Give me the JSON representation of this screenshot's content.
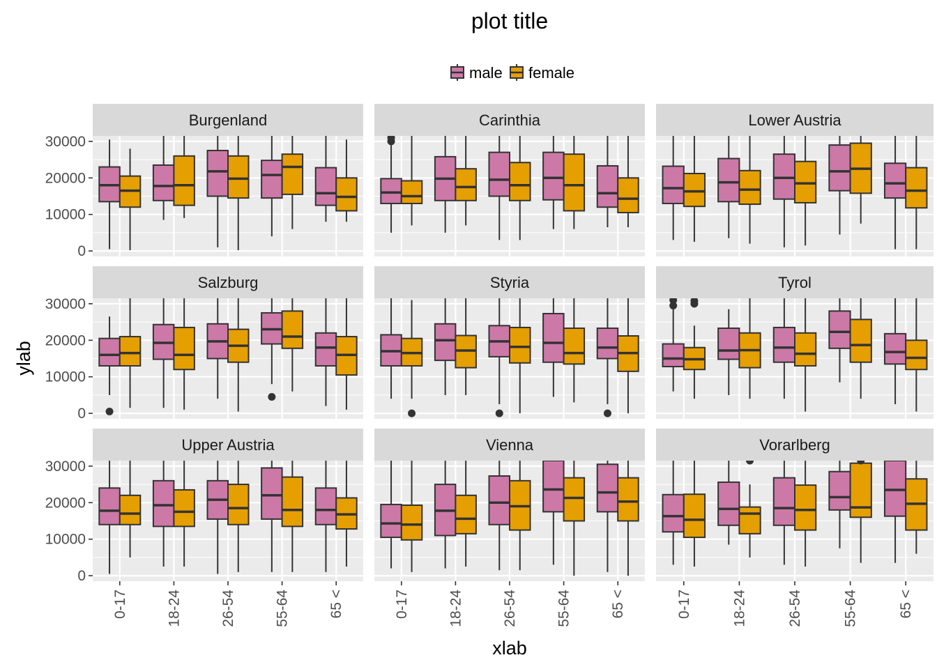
{
  "chart_data": {
    "type": "boxplot",
    "title": "plot title",
    "xlabel": "xlab",
    "ylabel": "ylab",
    "ylim": [
      -1500,
      31500
    ],
    "yticks": [
      0,
      10000,
      20000,
      30000
    ],
    "ytick_labels": [
      "0",
      "10000",
      "20000",
      "30000"
    ],
    "categories": [
      "0-17",
      "18-24",
      "26-54",
      "55-64",
      "65 <"
    ],
    "legend": {
      "position": "top",
      "entries": [
        "male",
        "female"
      ]
    },
    "series_colors": {
      "male": "#CC79A7",
      "female": "#E69F00"
    },
    "panels": [
      {
        "name": "Burgenland",
        "boxes": {
          "male": [
            [
              500,
              13500,
              18000,
              23000,
              30500
            ],
            [
              8500,
              13800,
              17800,
              23500,
              31500
            ],
            [
              1000,
              15000,
              21800,
              27500,
              31500
            ],
            [
              4000,
              14500,
              20800,
              24800,
              31500
            ],
            [
              8000,
              12500,
              15800,
              22800,
              31500
            ]
          ],
          "female": [
            [
              200,
              12000,
              16500,
              20500,
              28000
            ],
            [
              9000,
              12500,
              18000,
              26000,
              31500
            ],
            [
              200,
              14500,
              19800,
              26000,
              31500
            ],
            [
              6000,
              15500,
              23000,
              26500,
              31500
            ],
            [
              8000,
              11000,
              14800,
              20000,
              30500
            ]
          ]
        },
        "outliers": {
          "male": [
            [],
            [],
            [],
            [],
            []
          ],
          "female": [
            [],
            [],
            [],
            [],
            []
          ]
        }
      },
      {
        "name": "Carinthia",
        "boxes": {
          "male": [
            [
              5000,
              13000,
              16000,
              19800,
              30000
            ],
            [
              5000,
              13800,
              19800,
              25800,
              31500
            ],
            [
              3000,
              15000,
              19500,
              27000,
              31500
            ],
            [
              6000,
              14000,
              20000,
              27000,
              31500
            ],
            [
              6500,
              12000,
              15800,
              23300,
              31500
            ]
          ],
          "female": [
            [
              7000,
              13000,
              15000,
              19200,
              31500
            ],
            [
              7000,
              13800,
              17500,
              22500,
              31500
            ],
            [
              3000,
              13800,
              18000,
              24200,
              31500
            ],
            [
              6000,
              11000,
              18000,
              26500,
              31500
            ],
            [
              6500,
              10500,
              14300,
              20000,
              31500
            ]
          ]
        },
        "outliers": {
          "male": [
            [
              30000,
              31000
            ],
            [],
            [],
            [],
            []
          ],
          "female": [
            [],
            [],
            [],
            [],
            []
          ]
        }
      },
      {
        "name": "Lower Austria",
        "boxes": {
          "male": [
            [
              3000,
              13000,
              17200,
              23200,
              31500
            ],
            [
              3500,
              13500,
              18800,
              25300,
              31500
            ],
            [
              1000,
              14200,
              20000,
              26500,
              31500
            ],
            [
              4500,
              16500,
              21800,
              29000,
              31500
            ],
            [
              500,
              14500,
              18500,
              24000,
              31500
            ]
          ],
          "female": [
            [
              2500,
              12200,
              16300,
              21200,
              31500
            ],
            [
              2000,
              12800,
              16800,
              22000,
              31500
            ],
            [
              1500,
              13200,
              18500,
              24500,
              31500
            ],
            [
              7500,
              15800,
              22500,
              29500,
              31500
            ],
            [
              500,
              11800,
              16500,
              22800,
              31500
            ]
          ]
        },
        "outliers": {
          "male": [
            [],
            [],
            [],
            [],
            []
          ],
          "female": [
            [],
            [],
            [],
            [],
            []
          ]
        }
      },
      {
        "name": "Salzburg",
        "boxes": {
          "male": [
            [
              5000,
              13000,
              16000,
              20500,
              26500
            ],
            [
              1500,
              14800,
              19300,
              24300,
              31500
            ],
            [
              4000,
              15000,
              19700,
              24500,
              31500
            ],
            [
              8000,
              19000,
              23000,
              27500,
              31500
            ],
            [
              2000,
              13000,
              18000,
              22000,
              31500
            ]
          ],
          "female": [
            [
              1500,
              13000,
              16500,
              21000,
              31500
            ],
            [
              1000,
              12000,
              16000,
              23500,
              31500
            ],
            [
              500,
              14000,
              18500,
              23000,
              31500
            ],
            [
              6000,
              17800,
              21000,
              28000,
              31500
            ],
            [
              1000,
              10500,
              16000,
              21000,
              31500
            ]
          ]
        },
        "outliers": {
          "male": [
            [
              500
            ],
            [],
            [],
            [
              4500
            ],
            []
          ],
          "female": [
            [],
            [],
            [],
            [],
            []
          ]
        }
      },
      {
        "name": "Styria",
        "boxes": {
          "male": [
            [
              4000,
              13000,
              17000,
              21500,
              31500
            ],
            [
              5000,
              14500,
              20000,
              24500,
              31500
            ],
            [
              2500,
              15500,
              19700,
              24000,
              31500
            ],
            [
              4500,
              14000,
              19300,
              27300,
              31500
            ],
            [
              2500,
              15000,
              18000,
              23300,
              31500
            ]
          ],
          "female": [
            [
              4000,
              13000,
              16500,
              20500,
              31000
            ],
            [
              5000,
              12500,
              17200,
              21300,
              31500
            ],
            [
              0,
              13800,
              18200,
              23500,
              31500
            ],
            [
              3000,
              13500,
              16500,
              23300,
              31500
            ],
            [
              0,
              11500,
              16500,
              21200,
              31500
            ]
          ]
        },
        "outliers": {
          "male": [
            [],
            [],
            [
              0
            ],
            [],
            [
              0
            ]
          ],
          "female": [
            [
              0
            ],
            [],
            [],
            [],
            []
          ]
        }
      },
      {
        "name": "Tyrol",
        "boxes": {
          "male": [
            [
              6000,
              12800,
              15000,
              19000,
              28500
            ],
            [
              5000,
              14800,
              17200,
              23300,
              28500
            ],
            [
              4000,
              14000,
              18000,
              23500,
              31500
            ],
            [
              8500,
              17800,
              22300,
              28000,
              31500
            ],
            [
              2500,
              13500,
              16800,
              21800,
              31500
            ]
          ],
          "female": [
            [
              4000,
              12000,
              14800,
              18000,
              24000
            ],
            [
              4000,
              12500,
              17300,
              22000,
              31500
            ],
            [
              500,
              13000,
              16300,
              22000,
              31500
            ],
            [
              4000,
              14000,
              18700,
              25700,
              31500
            ],
            [
              500,
              12000,
              15200,
              20000,
              31500
            ]
          ]
        },
        "outliers": {
          "male": [
            [
              29500,
              31000
            ],
            [],
            [],
            [],
            []
          ],
          "female": [
            [
              30000,
              30800
            ],
            [],
            [],
            [],
            []
          ]
        }
      },
      {
        "name": "Upper Austria",
        "boxes": {
          "male": [
            [
              500,
              14000,
              17800,
              24000,
              31500
            ],
            [
              2500,
              13500,
              19300,
              26000,
              31500
            ],
            [
              500,
              15500,
              20800,
              26000,
              31500
            ],
            [
              1000,
              15500,
              22000,
              29500,
              31500
            ],
            [
              1000,
              14000,
              18000,
              24000,
              31500
            ]
          ],
          "female": [
            [
              5000,
              14000,
              17000,
              22000,
              31500
            ],
            [
              2500,
              13500,
              17500,
              23500,
              31500
            ],
            [
              1000,
              14000,
              18500,
              25000,
              31500
            ],
            [
              1000,
              13500,
              18000,
              27000,
              31500
            ],
            [
              2500,
              12800,
              16800,
              21300,
              31500
            ]
          ]
        },
        "outliers": {
          "male": [
            [],
            [],
            [],
            [],
            []
          ],
          "female": [
            [],
            [],
            [],
            [],
            []
          ]
        }
      },
      {
        "name": "Vienna",
        "boxes": {
          "male": [
            [
              2000,
              10500,
              14300,
              19500,
              31500
            ],
            [
              2000,
              11000,
              17800,
              25000,
              31500
            ],
            [
              1500,
              14000,
              20000,
              27300,
              31500
            ],
            [
              3000,
              17500,
              23600,
              31500,
              31500
            ],
            [
              1000,
              17500,
              22800,
              30500,
              31500
            ]
          ],
          "female": [
            [
              1000,
              9800,
              14000,
              19300,
              31500
            ],
            [
              2500,
              11500,
              15600,
              22000,
              31500
            ],
            [
              1500,
              12500,
              19000,
              26000,
              31500
            ],
            [
              0,
              15000,
              21300,
              26800,
              31500
            ],
            [
              0,
              15000,
              20300,
              26800,
              31500
            ]
          ]
        },
        "outliers": {
          "male": [
            [],
            [],
            [],
            [],
            []
          ],
          "female": [
            [],
            [],
            [],
            [],
            []
          ]
        }
      },
      {
        "name": "Vorarlberg",
        "boxes": {
          "male": [
            [
              3000,
              12000,
              16300,
              22200,
              31500
            ],
            [
              8500,
              13800,
              18300,
              25600,
              31500
            ],
            [
              3000,
              13800,
              18500,
              26800,
              31500
            ],
            [
              7500,
              18000,
              21500,
              28500,
              31500
            ],
            [
              3500,
              16300,
              23500,
              31500,
              31500
            ]
          ],
          "female": [
            [
              2500,
              10500,
              15300,
              22300,
              31500
            ],
            [
              5000,
              11500,
              17000,
              18800,
              25000
            ],
            [
              2500,
              12500,
              18000,
              24800,
              31500
            ],
            [
              3500,
              16000,
              18700,
              30800,
              31500
            ],
            [
              6000,
              12500,
              19700,
              26500,
              31500
            ]
          ]
        },
        "outliers": {
          "male": [
            [],
            [],
            [],
            [],
            []
          ],
          "female": [
            [],
            [
              31500
            ],
            [],
            [
              31500
            ],
            []
          ]
        }
      }
    ]
  }
}
